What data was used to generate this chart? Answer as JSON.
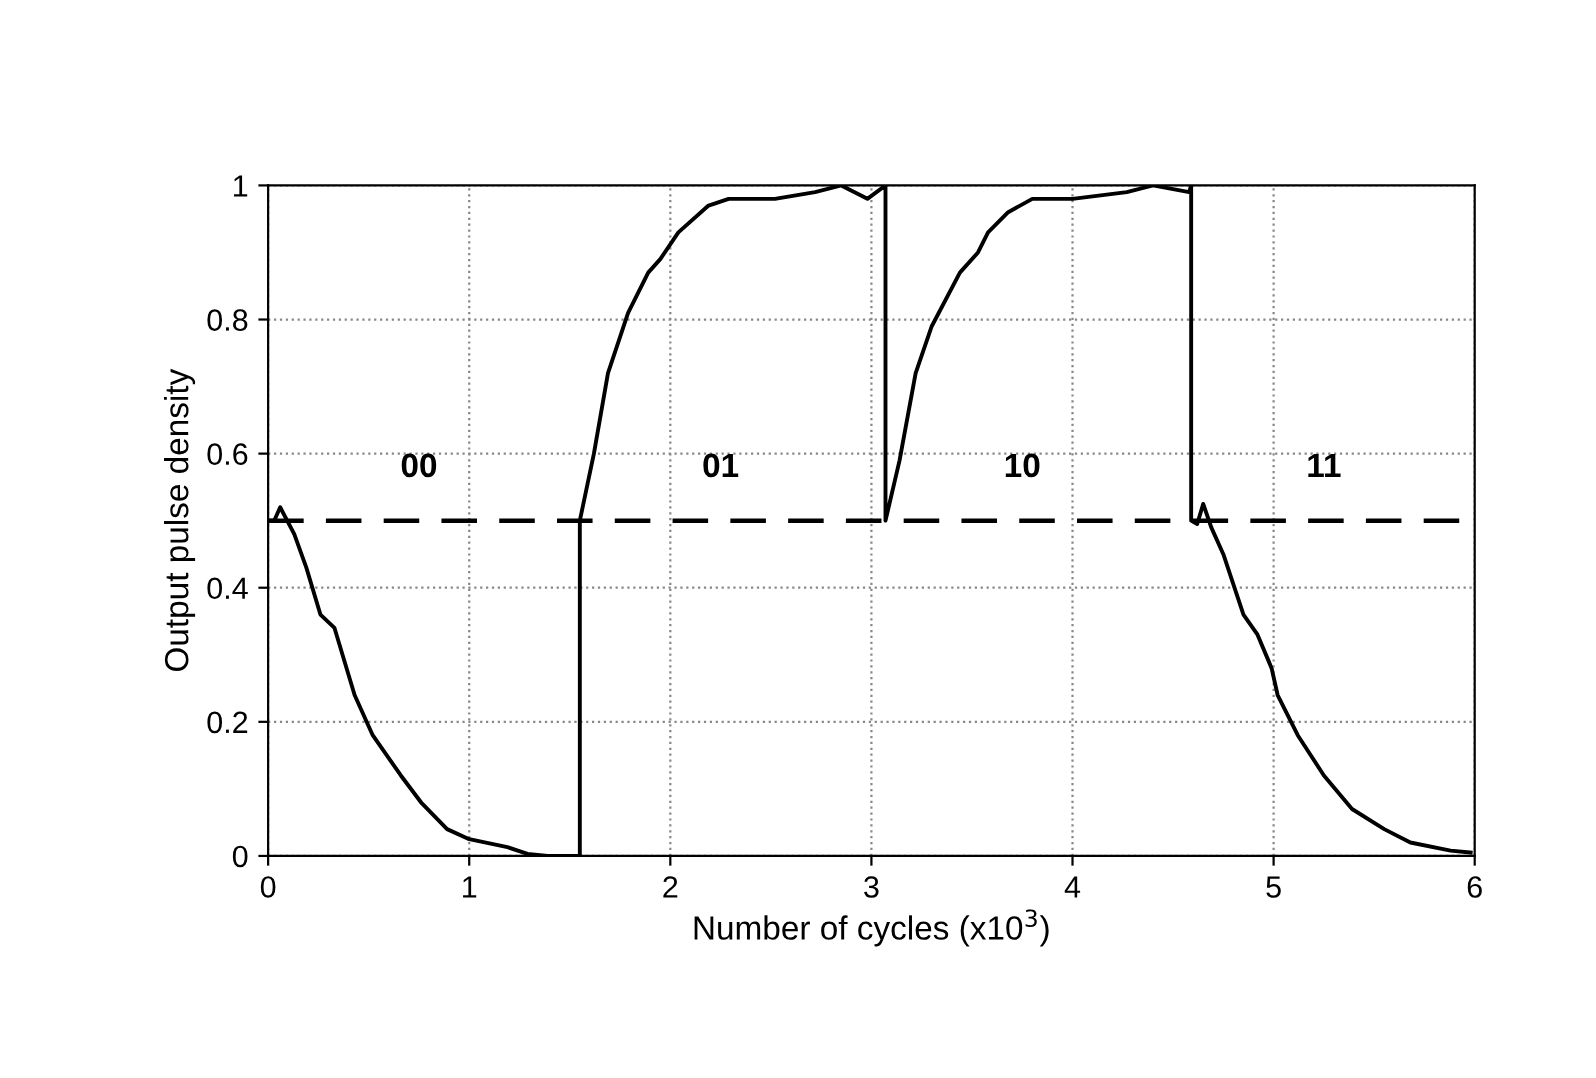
{
  "chart_data": {
    "type": "line",
    "xlabel": "Number of cycles (x10$^{3}$)",
    "ylabel": "Output pulse density",
    "xlim": [
      0,
      6
    ],
    "ylim": [
      0,
      1
    ],
    "xticks": [
      0,
      1,
      2,
      3,
      4,
      5,
      6
    ],
    "yticks": [
      0,
      0.2,
      0.4,
      0.6,
      0.8,
      1
    ],
    "grid": true,
    "legend": false,
    "marker": "none",
    "line_style": "solid",
    "series": [
      {
        "color": "#000000",
        "x": [
          0,
          0.03,
          0.06,
          0.13,
          0.19,
          0.26,
          0.33,
          0.39,
          0.43,
          0.52,
          0.66,
          0.76,
          0.89,
          1.0,
          1.19,
          1.29,
          1.39,
          1.55,
          1.55,
          1.62,
          1.69,
          1.79,
          1.89,
          1.95,
          2.04,
          2.19,
          2.29,
          2.52,
          2.72,
          2.85,
          2.98,
          3.07,
          3.07,
          3.14,
          3.22,
          3.3,
          3.44,
          3.53,
          3.58,
          3.68,
          3.8,
          4.0,
          4.27,
          4.4,
          4.58,
          4.59,
          4.59,
          4.62,
          4.65,
          4.69,
          4.75,
          4.85,
          4.92,
          4.99,
          5.02,
          5.12,
          5.25,
          5.39,
          5.55,
          5.68,
          5.88,
          5.98
        ],
        "values": [
          0.5,
          0.5,
          0.52,
          0.48,
          0.43,
          0.36,
          0.34,
          0.28,
          0.24,
          0.18,
          0.12,
          0.08,
          0.04,
          0.025,
          0.013,
          0.003,
          0,
          0,
          0.5,
          0.6,
          0.72,
          0.81,
          0.87,
          0.89,
          0.93,
          0.97,
          0.98,
          0.98,
          0.99,
          1.0,
          0.98,
          1.0,
          0.5,
          0.59,
          0.72,
          0.79,
          0.87,
          0.9,
          0.93,
          0.96,
          0.98,
          0.98,
          0.99,
          1.0,
          0.99,
          1.0,
          0.5,
          0.495,
          0.525,
          0.49,
          0.45,
          0.36,
          0.33,
          0.28,
          0.24,
          0.18,
          0.12,
          0.07,
          0.04,
          0.02,
          0.008,
          0.005
        ]
      }
    ],
    "ref_lines": [
      {
        "axis": "y",
        "value": 0.5,
        "color": "#000000",
        "line_style": "dashed"
      }
    ],
    "annotations": [
      "00",
      "01",
      "10",
      "11"
    ]
  }
}
